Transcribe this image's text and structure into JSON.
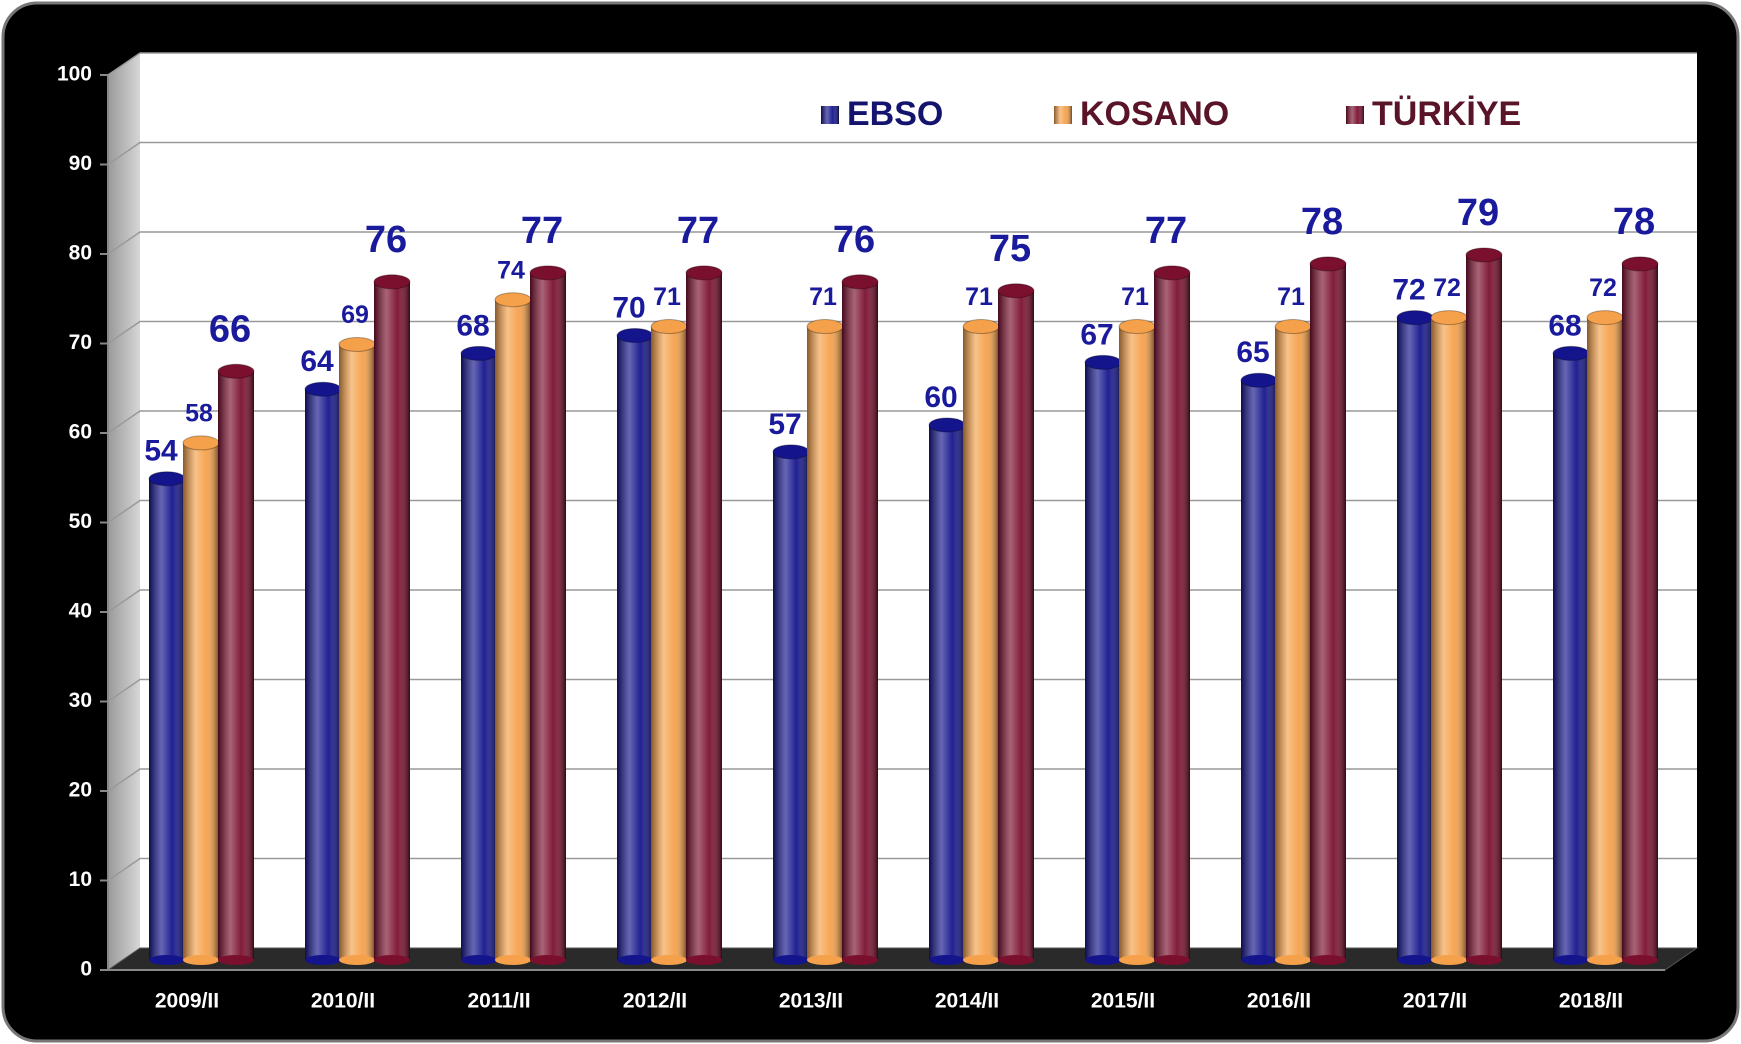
{
  "chart_data": {
    "type": "bar",
    "categories": [
      "2009/II",
      "2010/II",
      "2011/II",
      "2012/II",
      "2013/II",
      "2014/II",
      "2015/II",
      "2016/II",
      "2017/II",
      "2018/II"
    ],
    "series": [
      {
        "name": "EBSO",
        "color": "#14148c",
        "values": [
          54,
          64,
          68,
          70,
          57,
          60,
          67,
          65,
          72,
          68
        ]
      },
      {
        "name": "KOSANO",
        "color": "#f5a04a",
        "values": [
          58,
          69,
          74,
          71,
          71,
          71,
          71,
          71,
          72,
          72
        ]
      },
      {
        "name": "TÜRKİYE",
        "color": "#7a0f2e",
        "values": [
          66,
          76,
          77,
          77,
          76,
          75,
          77,
          78,
          79,
          78
        ]
      }
    ],
    "ylim": [
      0,
      100
    ],
    "yticks": [
      0,
      10,
      20,
      30,
      40,
      50,
      60,
      70,
      80,
      90,
      100
    ],
    "grid": true
  }
}
